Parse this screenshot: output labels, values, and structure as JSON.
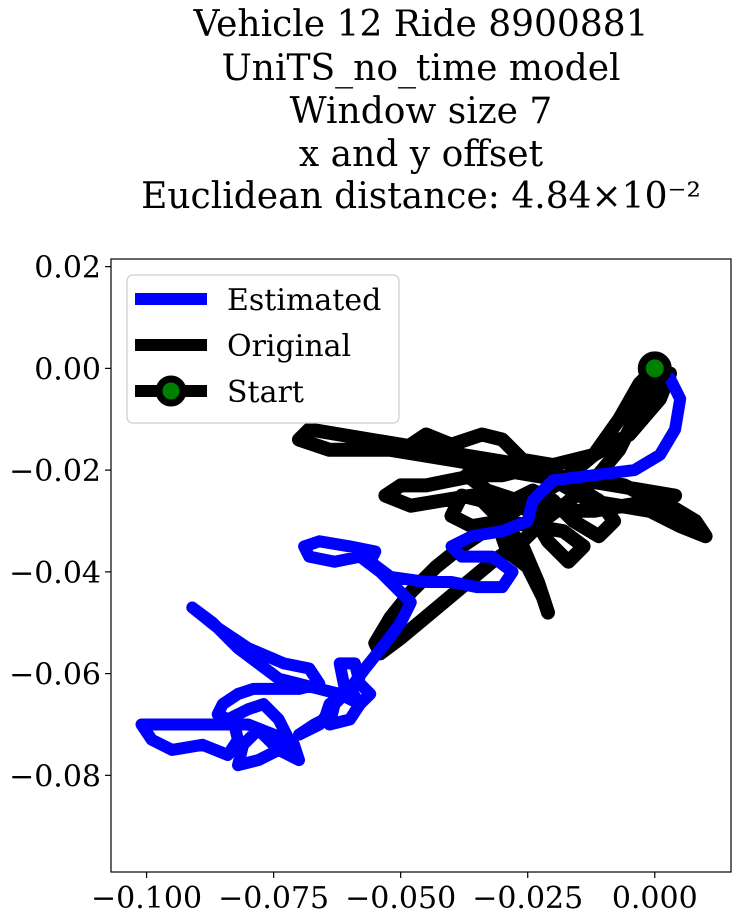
{
  "chart_data": {
    "type": "line",
    "title_lines": [
      "Vehicle 12 Ride 8900881",
      "UniTS_no_time model",
      "Window size 7",
      "x and y offset",
      "Euclidean distance: 4.84×10⁻²"
    ],
    "xlabel": "",
    "ylabel": "",
    "xlim": [
      -0.107,
      0.015
    ],
    "ylim": [
      -0.099,
      0.0215
    ],
    "xticks": [
      -0.1,
      -0.075,
      -0.05,
      -0.025,
      0.0
    ],
    "xtick_labels": [
      "−0.100",
      "−0.075",
      "−0.050",
      "−0.025",
      "0.000"
    ],
    "yticks": [
      0.02,
      0.0,
      -0.02,
      -0.04,
      -0.06,
      -0.08
    ],
    "ytick_labels": [
      "0.02",
      "0.00",
      "−0.02",
      "−0.04",
      "−0.06",
      "−0.08"
    ],
    "grid": false,
    "legend_position": "top-left",
    "series": [
      {
        "name": "Estimated",
        "color": "#0000ff",
        "points": [
          [
            0.0,
            0.0
          ],
          [
            0.003,
            -0.002
          ],
          [
            0.005,
            -0.006
          ],
          [
            0.004,
            -0.012
          ],
          [
            0.001,
            -0.017
          ],
          [
            -0.004,
            -0.02
          ],
          [
            -0.012,
            -0.021
          ],
          [
            -0.02,
            -0.022
          ],
          [
            -0.024,
            -0.026
          ],
          [
            -0.025,
            -0.03
          ],
          [
            -0.03,
            -0.032
          ],
          [
            -0.036,
            -0.033
          ],
          [
            -0.04,
            -0.035
          ],
          [
            -0.038,
            -0.037
          ],
          [
            -0.032,
            -0.037
          ],
          [
            -0.028,
            -0.04
          ],
          [
            -0.03,
            -0.043
          ],
          [
            -0.035,
            -0.043
          ],
          [
            -0.04,
            -0.042
          ],
          [
            -0.045,
            -0.042
          ],
          [
            -0.052,
            -0.041
          ],
          [
            -0.056,
            -0.038
          ],
          [
            -0.055,
            -0.036
          ],
          [
            -0.06,
            -0.035
          ],
          [
            -0.066,
            -0.034
          ],
          [
            -0.069,
            -0.035
          ],
          [
            -0.068,
            -0.037
          ],
          [
            -0.063,
            -0.038
          ],
          [
            -0.058,
            -0.037
          ],
          [
            -0.054,
            -0.04
          ],
          [
            -0.048,
            -0.046
          ],
          [
            -0.05,
            -0.05
          ],
          [
            -0.053,
            -0.054
          ],
          [
            -0.057,
            -0.059
          ],
          [
            -0.06,
            -0.063
          ],
          [
            -0.064,
            -0.066
          ],
          [
            -0.065,
            -0.069
          ],
          [
            -0.067,
            -0.07
          ],
          [
            -0.07,
            -0.072
          ],
          [
            -0.066,
            -0.07
          ],
          [
            -0.063,
            -0.066
          ],
          [
            -0.06,
            -0.063
          ],
          [
            -0.058,
            -0.066
          ],
          [
            -0.06,
            -0.069
          ],
          [
            -0.064,
            -0.07
          ],
          [
            -0.063,
            -0.066
          ],
          [
            -0.061,
            -0.063
          ],
          [
            -0.062,
            -0.058
          ],
          [
            -0.059,
            -0.058
          ],
          [
            -0.058,
            -0.062
          ],
          [
            -0.056,
            -0.064
          ],
          [
            -0.058,
            -0.066
          ],
          [
            -0.062,
            -0.064
          ],
          [
            -0.066,
            -0.063
          ],
          [
            -0.07,
            -0.062
          ],
          [
            -0.074,
            -0.061
          ],
          [
            -0.078,
            -0.058
          ],
          [
            -0.082,
            -0.055
          ],
          [
            -0.087,
            -0.05
          ],
          [
            -0.091,
            -0.047
          ],
          [
            -0.086,
            -0.051
          ],
          [
            -0.08,
            -0.055
          ],
          [
            -0.073,
            -0.058
          ],
          [
            -0.068,
            -0.059
          ],
          [
            -0.066,
            -0.062
          ],
          [
            -0.07,
            -0.063
          ],
          [
            -0.075,
            -0.063
          ],
          [
            -0.079,
            -0.063
          ],
          [
            -0.082,
            -0.064
          ],
          [
            -0.085,
            -0.066
          ],
          [
            -0.086,
            -0.068
          ],
          [
            -0.084,
            -0.069
          ],
          [
            -0.08,
            -0.067
          ],
          [
            -0.077,
            -0.066
          ],
          [
            -0.074,
            -0.069
          ],
          [
            -0.072,
            -0.073
          ],
          [
            -0.074,
            -0.075
          ],
          [
            -0.078,
            -0.077
          ],
          [
            -0.082,
            -0.078
          ],
          [
            -0.081,
            -0.074
          ],
          [
            -0.078,
            -0.071
          ],
          [
            -0.074,
            -0.075
          ],
          [
            -0.07,
            -0.077
          ],
          [
            -0.071,
            -0.074
          ],
          [
            -0.075,
            -0.072
          ],
          [
            -0.08,
            -0.07
          ],
          [
            -0.085,
            -0.07
          ],
          [
            -0.09,
            -0.07
          ],
          [
            -0.096,
            -0.07
          ],
          [
            -0.101,
            -0.07
          ],
          [
            -0.099,
            -0.073
          ],
          [
            -0.095,
            -0.075
          ],
          [
            -0.089,
            -0.074
          ],
          [
            -0.084,
            -0.076
          ],
          [
            -0.082,
            -0.073
          ],
          [
            -0.083,
            -0.069
          ]
        ]
      },
      {
        "name": "Original",
        "color": "#000000",
        "points": [
          [
            0.0,
            0.0
          ],
          [
            -0.003,
            -0.003
          ],
          [
            -0.007,
            -0.01
          ],
          [
            -0.012,
            -0.017
          ],
          [
            -0.018,
            -0.022
          ],
          [
            -0.026,
            -0.027
          ],
          [
            -0.032,
            -0.031
          ],
          [
            -0.038,
            -0.035
          ],
          [
            -0.043,
            -0.039
          ],
          [
            -0.048,
            -0.044
          ],
          [
            -0.052,
            -0.049
          ],
          [
            -0.055,
            -0.054
          ],
          [
            -0.054,
            -0.056
          ],
          [
            -0.05,
            -0.053
          ],
          [
            -0.044,
            -0.048
          ],
          [
            -0.038,
            -0.043
          ],
          [
            -0.032,
            -0.038
          ],
          [
            -0.026,
            -0.034
          ],
          [
            -0.022,
            -0.03
          ],
          [
            -0.018,
            -0.027
          ],
          [
            -0.012,
            -0.022
          ],
          [
            -0.007,
            -0.016
          ],
          [
            -0.003,
            -0.008
          ],
          [
            0.0,
            -0.002
          ],
          [
            0.003,
            -0.001
          ],
          [
            0.001,
            -0.006
          ],
          [
            -0.005,
            -0.013
          ],
          [
            -0.012,
            -0.017
          ],
          [
            -0.02,
            -0.019
          ],
          [
            -0.026,
            -0.018
          ],
          [
            -0.03,
            -0.014
          ],
          [
            -0.034,
            -0.013
          ],
          [
            -0.04,
            -0.015
          ],
          [
            -0.045,
            -0.013
          ],
          [
            -0.048,
            -0.015
          ],
          [
            -0.042,
            -0.017
          ],
          [
            -0.036,
            -0.018
          ],
          [
            -0.03,
            -0.02
          ],
          [
            -0.024,
            -0.021
          ],
          [
            -0.018,
            -0.022
          ],
          [
            -0.012,
            -0.022
          ],
          [
            -0.006,
            -0.023
          ],
          [
            -0.002,
            -0.025
          ],
          [
            0.003,
            -0.027
          ],
          [
            0.008,
            -0.03
          ],
          [
            0.01,
            -0.033
          ],
          [
            0.005,
            -0.031
          ],
          [
            -0.001,
            -0.028
          ],
          [
            -0.007,
            -0.027
          ],
          [
            -0.013,
            -0.026
          ],
          [
            -0.018,
            -0.023
          ],
          [
            -0.022,
            -0.021
          ],
          [
            -0.026,
            -0.02
          ],
          [
            -0.03,
            -0.021
          ],
          [
            -0.035,
            -0.021
          ],
          [
            -0.04,
            -0.022
          ],
          [
            -0.045,
            -0.023
          ],
          [
            -0.05,
            -0.023
          ],
          [
            -0.053,
            -0.025
          ],
          [
            -0.048,
            -0.027
          ],
          [
            -0.042,
            -0.026
          ],
          [
            -0.036,
            -0.025
          ],
          [
            -0.03,
            -0.026
          ],
          [
            -0.024,
            -0.027
          ],
          [
            -0.018,
            -0.028
          ],
          [
            -0.012,
            -0.028
          ],
          [
            -0.006,
            -0.027
          ],
          [
            0.0,
            -0.026
          ],
          [
            0.004,
            -0.025
          ],
          [
            -0.002,
            -0.024
          ],
          [
            -0.008,
            -0.023
          ],
          [
            -0.014,
            -0.022
          ],
          [
            -0.02,
            -0.021
          ],
          [
            -0.026,
            -0.019
          ],
          [
            -0.032,
            -0.018
          ],
          [
            -0.038,
            -0.017
          ],
          [
            -0.044,
            -0.016
          ],
          [
            -0.05,
            -0.015
          ],
          [
            -0.056,
            -0.014
          ],
          [
            -0.062,
            -0.013
          ],
          [
            -0.068,
            -0.012
          ],
          [
            -0.07,
            -0.014
          ],
          [
            -0.064,
            -0.016
          ],
          [
            -0.058,
            -0.016
          ],
          [
            -0.052,
            -0.016
          ],
          [
            -0.046,
            -0.017
          ],
          [
            -0.04,
            -0.018
          ],
          [
            -0.034,
            -0.019
          ],
          [
            -0.028,
            -0.02
          ],
          [
            -0.022,
            -0.021
          ],
          [
            -0.016,
            -0.023
          ],
          [
            -0.011,
            -0.026
          ],
          [
            -0.008,
            -0.03
          ],
          [
            -0.011,
            -0.033
          ],
          [
            -0.016,
            -0.03
          ],
          [
            -0.02,
            -0.026
          ],
          [
            -0.024,
            -0.024
          ],
          [
            -0.028,
            -0.026
          ],
          [
            -0.031,
            -0.03
          ],
          [
            -0.029,
            -0.036
          ],
          [
            -0.025,
            -0.039
          ],
          [
            -0.022,
            -0.045
          ],
          [
            -0.021,
            -0.048
          ],
          [
            -0.023,
            -0.042
          ],
          [
            -0.026,
            -0.035
          ],
          [
            -0.03,
            -0.03
          ],
          [
            -0.034,
            -0.026
          ],
          [
            -0.038,
            -0.025
          ],
          [
            -0.04,
            -0.029
          ],
          [
            -0.036,
            -0.031
          ],
          [
            -0.03,
            -0.03
          ],
          [
            -0.024,
            -0.031
          ],
          [
            -0.018,
            -0.032
          ],
          [
            -0.014,
            -0.035
          ],
          [
            -0.017,
            -0.038
          ],
          [
            -0.021,
            -0.034
          ],
          [
            -0.024,
            -0.029
          ],
          [
            -0.027,
            -0.026
          ],
          [
            -0.033,
            -0.024
          ],
          [
            -0.037,
            -0.021
          ]
        ]
      },
      {
        "name": "Start",
        "color": "#000000",
        "marker_fill": "#008000",
        "points": [
          [
            0.0,
            0.0
          ]
        ]
      }
    ]
  }
}
